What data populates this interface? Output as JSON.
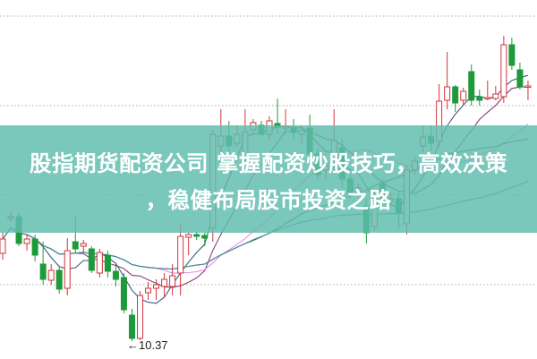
{
  "headline": {
    "line1": "股指期货配资公司 掌握配资炒股技巧，高效决策",
    "line2": "，稳健布局股市投资之路"
  },
  "colors": {
    "up": "#d0343c",
    "down": "#1e9a3a",
    "banner": "#60bcae",
    "grid": "#aaaaaa",
    "ma": [
      "#3d5a7a",
      "#8a3f78",
      "#e88ce6",
      "#4d6b3a",
      "#3f8fa0"
    ]
  },
  "chart_data": {
    "type": "candlestick",
    "grid": true,
    "gridlines": [
      11,
      12,
      13,
      14
    ],
    "ylim": [
      10.2,
      14.18
    ],
    "moving_average_periods": [
      5,
      10,
      20,
      30,
      60
    ],
    "annotations": [
      {
        "text": "10.37",
        "arrow": "←",
        "points_to": "lowest low"
      }
    ],
    "candles_ohlc": [
      [
        11.35,
        11.58,
        11.28,
        11.51
      ],
      [
        11.74,
        11.83,
        11.7,
        11.76
      ],
      [
        11.76,
        11.8,
        11.43,
        11.46
      ],
      [
        11.46,
        11.56,
        11.38,
        11.51
      ],
      [
        11.51,
        11.56,
        11.26,
        11.33
      ],
      [
        11.23,
        11.48,
        11.0,
        11.06
      ],
      [
        11.05,
        11.23,
        11.0,
        11.16
      ],
      [
        11.16,
        11.2,
        10.9,
        10.95
      ],
      [
        10.96,
        11.52,
        10.88,
        11.38
      ],
      [
        11.48,
        11.78,
        11.36,
        11.4
      ],
      [
        11.43,
        11.5,
        11.36,
        11.46
      ],
      [
        11.4,
        11.43,
        11.13,
        11.16
      ],
      [
        11.13,
        11.4,
        11.08,
        11.36
      ],
      [
        11.33,
        11.38,
        11.08,
        11.15
      ],
      [
        11.15,
        11.23,
        10.98,
        11.06
      ],
      [
        11.08,
        11.13,
        10.68,
        10.72
      ],
      [
        10.66,
        10.73,
        10.37,
        10.4
      ],
      [
        10.4,
        10.93,
        10.38,
        10.88
      ],
      [
        10.91,
        11.03,
        10.83,
        10.96
      ],
      [
        10.96,
        11.06,
        10.83,
        11.0
      ],
      [
        10.98,
        11.13,
        10.86,
        11.06
      ],
      [
        10.98,
        11.23,
        10.88,
        11.1
      ],
      [
        11.13,
        11.68,
        10.88,
        11.54
      ],
      [
        11.53,
        11.58,
        11.33,
        11.56
      ],
      [
        11.56,
        11.6,
        11.5,
        11.54
      ],
      [
        11.55,
        11.58,
        11.43,
        11.52
      ],
      [
        11.63,
        12.73,
        11.48,
        12.68
      ],
      [
        12.55,
        12.96,
        12.48,
        12.66
      ],
      [
        12.66,
        12.83,
        12.48,
        12.55
      ],
      [
        12.58,
        12.78,
        12.53,
        12.68
      ],
      [
        12.43,
        12.96,
        12.38,
        12.71
      ],
      [
        12.73,
        12.85,
        12.68,
        12.81
      ],
      [
        12.78,
        12.83,
        12.66,
        12.68
      ],
      [
        12.68,
        12.88,
        12.63,
        12.83
      ],
      [
        12.8,
        13.08,
        12.68,
        12.76
      ],
      [
        12.75,
        12.96,
        12.68,
        12.77
      ],
      [
        12.76,
        12.85,
        12.63,
        12.7
      ],
      [
        12.68,
        12.78,
        12.58,
        12.72
      ],
      [
        12.75,
        12.9,
        12.33,
        12.46
      ],
      [
        12.46,
        12.53,
        12.18,
        12.23
      ],
      [
        12.28,
        12.38,
        12.18,
        12.33
      ],
      [
        12.38,
        12.96,
        12.23,
        12.61
      ],
      [
        12.53,
        12.63,
        12.08,
        12.18
      ],
      [
        12.18,
        12.23,
        11.96,
        12.03
      ],
      [
        12.03,
        12.13,
        11.98,
        12.08
      ],
      [
        11.88,
        11.96,
        11.46,
        11.58
      ],
      [
        11.65,
        12.03,
        11.6,
        11.96
      ],
      [
        12.13,
        12.18,
        11.88,
        11.93
      ],
      [
        11.93,
        12.03,
        11.88,
        11.96
      ],
      [
        11.96,
        12.03,
        11.63,
        11.8
      ],
      [
        11.68,
        12.33,
        11.56,
        12.28
      ],
      [
        12.28,
        12.43,
        12.23,
        12.38
      ],
      [
        12.55,
        12.78,
        12.48,
        12.65
      ],
      [
        12.66,
        12.78,
        12.5,
        12.58
      ],
      [
        12.6,
        13.24,
        12.53,
        13.05
      ],
      [
        13.06,
        13.6,
        12.96,
        13.21
      ],
      [
        13.21,
        13.23,
        12.93,
        13.03
      ],
      [
        13.06,
        13.2,
        13.0,
        13.16
      ],
      [
        13.38,
        13.46,
        13.0,
        13.06
      ],
      [
        13.1,
        13.18,
        13.0,
        13.06
      ],
      [
        13.08,
        13.28,
        13.06,
        13.09
      ],
      [
        13.08,
        13.22,
        13.06,
        13.13
      ],
      [
        13.1,
        13.78,
        13.03,
        13.68
      ],
      [
        13.68,
        13.76,
        13.4,
        13.45
      ],
      [
        13.4,
        13.48,
        13.18,
        13.21
      ],
      [
        13.21,
        13.28,
        13.06,
        13.22
      ]
    ]
  }
}
